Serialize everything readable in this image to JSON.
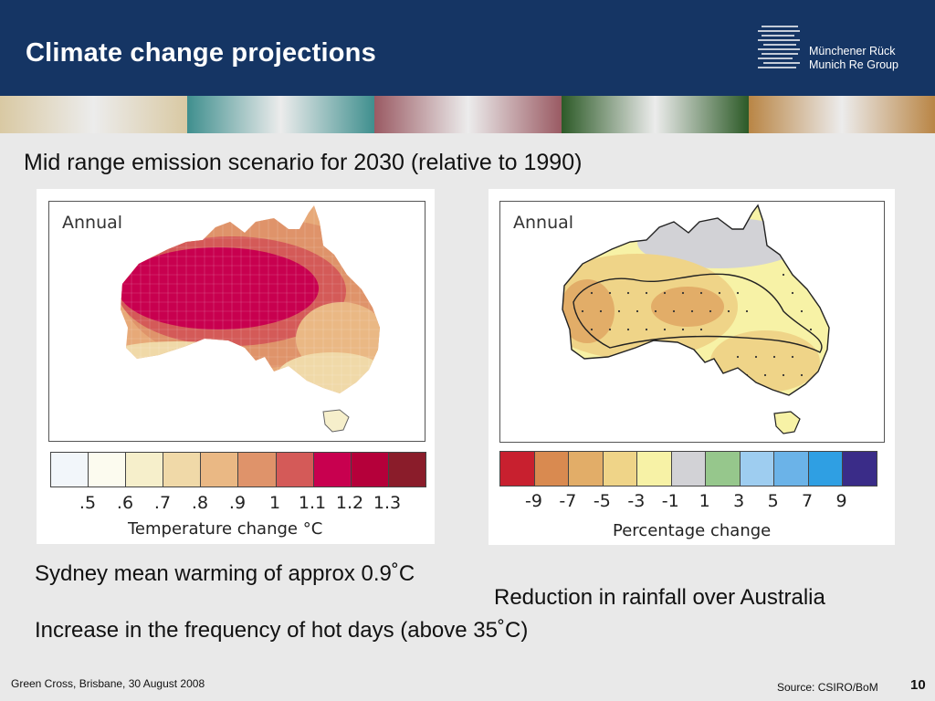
{
  "header": {
    "title": "Climate change projections",
    "logo": {
      "icon": "munich-re-logo-icon",
      "line1": "Münchener Rück",
      "line2": "Munich Re Group"
    },
    "banner_colors": [
      "#d9c9a3",
      "#3f8f8e",
      "#9a5a63",
      "#2c5a27",
      "#b98545"
    ]
  },
  "subtitle": "Mid range emission scenario for 2030 (relative to 1990)",
  "temperature_map": {
    "label": "Annual",
    "legend_colors": [
      "#f2f6fa",
      "#fcfbef",
      "#f6efcb",
      "#f0d9a8",
      "#eab884",
      "#df936a",
      "#d45a58",
      "#c8004f",
      "#b5003a",
      "#8a1c2a"
    ],
    "tick_labels": [
      ".5",
      ".6",
      ".7",
      ".8",
      ".9",
      "1",
      "1.1",
      "1.2",
      "1.3"
    ],
    "axis_title": "Temperature change °C"
  },
  "rainfall_map": {
    "label": "Annual",
    "legend_colors": [
      "#c8202f",
      "#d98a50",
      "#e2ad68",
      "#efd488",
      "#f7f2a6",
      "#d2d2d6",
      "#96c78c",
      "#9ecdf0",
      "#6bb3e8",
      "#2f9fe3",
      "#3a2c88"
    ],
    "tick_labels": [
      "-9",
      "-7",
      "-5",
      "-3",
      "-1",
      "1",
      "3",
      "5",
      "7",
      "9"
    ],
    "axis_title": "Percentage change"
  },
  "bullets": {
    "sydney": "Sydney mean warming of approx 0.9˚C",
    "rainfall": "Reduction in rainfall over Australia",
    "hot_days": "Increase in the frequency of hot days (above 35˚C)"
  },
  "footer": {
    "event": "Green Cross, Brisbane, 30 August 2008",
    "source": "Source: CSIRO/BoM",
    "page": "10"
  }
}
